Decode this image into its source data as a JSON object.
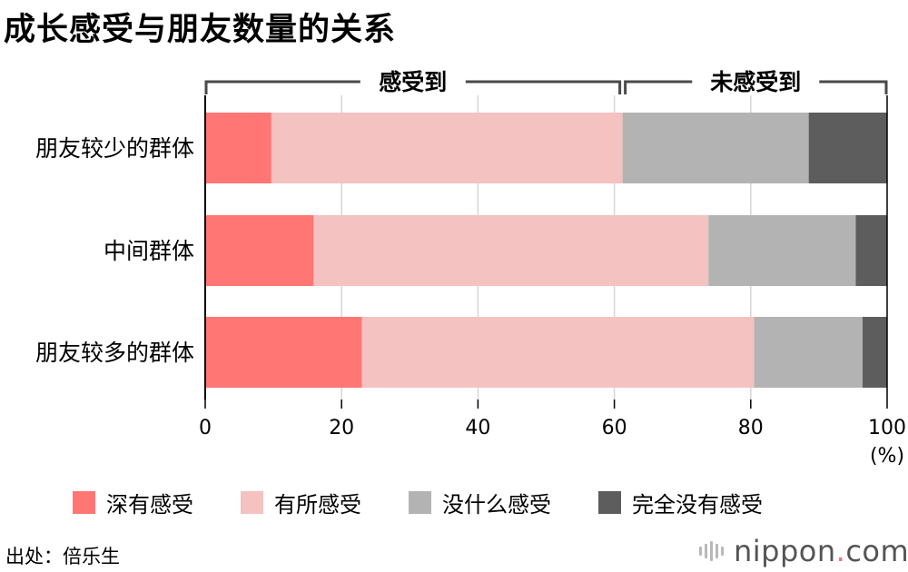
{
  "title": "成长感受与朋友数量的关系",
  "chart_data": {
    "type": "bar",
    "orientation": "horizontal",
    "stacked": true,
    "categories": [
      "朋友较少的群体",
      "中间群体",
      "朋友较多的群体"
    ],
    "series": [
      {
        "name": "深有感受",
        "values": [
          9.7,
          15.9,
          23.0
        ],
        "color": "#ff7674"
      },
      {
        "name": "有所感受",
        "values": [
          51.5,
          57.9,
          57.5
        ],
        "color": "#f3c2c1"
      },
      {
        "name": "没什么感受",
        "values": [
          27.3,
          21.6,
          15.9
        ],
        "color": "#b3b3b3"
      },
      {
        "name": "完全没有感受",
        "values": [
          11.5,
          4.6,
          3.6
        ],
        "color": "#5d5d5d"
      }
    ],
    "xlim": [
      0,
      100
    ],
    "xticks": [
      "0",
      "20",
      "40",
      "60",
      "80",
      "100"
    ],
    "x_unit": "(%)",
    "grid": true,
    "group_brackets": [
      {
        "label": "感受到",
        "start": 0,
        "end": 61.2
      },
      {
        "label": "未感受到",
        "start": 61.2,
        "end": 100
      }
    ],
    "legend_position": "bottom"
  },
  "source": "出处：倍乐生",
  "logo": {
    "main": "nippon",
    "dot": ".",
    "tld": "com"
  }
}
